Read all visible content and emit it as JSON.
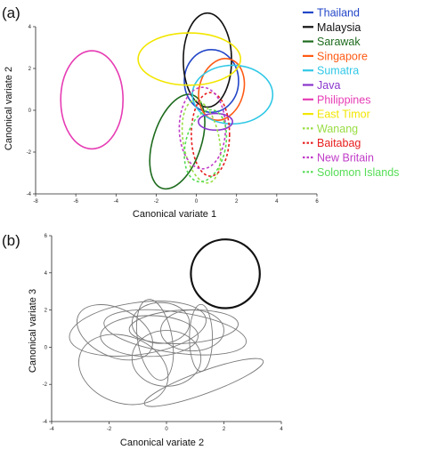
{
  "figure": {
    "panel_a_label": "(a)",
    "panel_b_label": "(b)"
  },
  "chart_data": [
    {
      "type": "scatter",
      "title": "",
      "xlabel": "Canonical variate 1",
      "ylabel": "Canonical variate 2",
      "xlim": [
        -8,
        6
      ],
      "ylim": [
        -4,
        4
      ],
      "xticks": [
        -8,
        -6,
        -4,
        -2,
        0,
        2,
        4,
        6
      ],
      "yticks": [
        -4,
        -2,
        0,
        2,
        4
      ],
      "grid": false,
      "legend_position": "right",
      "series": [
        {
          "name": "Thailand",
          "color": "#2346c8",
          "dash": false,
          "ellipse": {
            "cx": 0.75,
            "cy": 1.4,
            "rx": 1.35,
            "ry": 1.5,
            "angle": 0
          }
        },
        {
          "name": "Malaysia",
          "color": "#111111",
          "dash": false,
          "ellipse": {
            "cx": 0.55,
            "cy": 2.4,
            "rx": 1.2,
            "ry": 2.25,
            "angle": 0
          }
        },
        {
          "name": "Sarawak",
          "color": "#1e6b1e",
          "dash": false,
          "ellipse": {
            "cx": -0.95,
            "cy": -1.5,
            "rx": 1.2,
            "ry": 2.35,
            "angle": -18
          }
        },
        {
          "name": "Singapore",
          "color": "#ff5a14",
          "dash": false,
          "ellipse": {
            "cx": 1.25,
            "cy": 1.0,
            "rx": 1.1,
            "ry": 1.5,
            "angle": -15
          }
        },
        {
          "name": "Sumatra",
          "color": "#30c8e6",
          "dash": false,
          "ellipse": {
            "cx": 1.8,
            "cy": 0.75,
            "rx": 2.0,
            "ry": 1.4,
            "angle": 0
          }
        },
        {
          "name": "Java",
          "color": "#8a35cc",
          "dash": false,
          "ellipse": {
            "cx": 0.95,
            "cy": -0.55,
            "rx": 0.85,
            "ry": 0.4,
            "angle": 0
          }
        },
        {
          "name": "Philippines",
          "color": "#e63cb4",
          "dash": false,
          "ellipse": {
            "cx": -5.2,
            "cy": 0.5,
            "rx": 1.55,
            "ry": 2.35,
            "angle": 0
          }
        },
        {
          "name": "East Timor",
          "color": "#f2e600",
          "dash": false,
          "ellipse": {
            "cx": -0.35,
            "cy": 2.45,
            "rx": 2.55,
            "ry": 1.25,
            "angle": 0
          }
        },
        {
          "name": "Wanang",
          "color": "#99dd44",
          "dash": true,
          "ellipse": {
            "cx": 0.25,
            "cy": -1.5,
            "rx": 0.9,
            "ry": 2.0,
            "angle": 10
          }
        },
        {
          "name": "Baitabag",
          "color": "#e81e1e",
          "dash": true,
          "ellipse": {
            "cx": 0.7,
            "cy": -1.15,
            "rx": 0.95,
            "ry": 2.0,
            "angle": 0
          }
        },
        {
          "name": "New Britain",
          "color": "#c03cc8",
          "dash": true,
          "ellipse": {
            "cx": 0.3,
            "cy": -0.85,
            "rx": 1.15,
            "ry": 1.95,
            "angle": 0
          }
        },
        {
          "name": "Solomon Islands",
          "color": "#55dd55",
          "dash": true,
          "ellipse": {
            "cx": 0.45,
            "cy": -1.7,
            "rx": 1.0,
            "ry": 1.75,
            "angle": -12
          }
        }
      ]
    },
    {
      "type": "scatter",
      "title": "",
      "xlabel": "Canonical variate 2",
      "ylabel": "Canonical variate 3",
      "xlim": [
        -4,
        4
      ],
      "ylim": [
        -4,
        6
      ],
      "xticks": [
        -4,
        -2,
        0,
        2,
        4
      ],
      "yticks": [
        -4,
        -2,
        0,
        2,
        4,
        6
      ],
      "grid": false,
      "highlight_color": "#111111",
      "other_color": "#7a7a7a",
      "series": [
        {
          "highlight": true,
          "ellipse": {
            "cx": 2.05,
            "cy": 3.95,
            "rx": 1.2,
            "ry": 1.85,
            "angle": 0
          }
        },
        {
          "highlight": false,
          "ellipse": {
            "cx": -1.0,
            "cy": 1.0,
            "rx": 2.4,
            "ry": 1.4,
            "angle": 8
          }
        },
        {
          "highlight": false,
          "ellipse": {
            "cx": 0.3,
            "cy": 0.8,
            "rx": 2.5,
            "ry": 1.1,
            "angle": -8
          }
        },
        {
          "highlight": false,
          "ellipse": {
            "cx": -0.6,
            "cy": 0.6,
            "rx": 1.7,
            "ry": 1.1,
            "angle": 0
          }
        },
        {
          "highlight": false,
          "ellipse": {
            "cx": -1.8,
            "cy": 0.8,
            "rx": 1.4,
            "ry": 1.3,
            "angle": -25
          }
        },
        {
          "highlight": false,
          "ellipse": {
            "cx": -0.2,
            "cy": 1.3,
            "rx": 1.0,
            "ry": 1.1,
            "angle": 0
          }
        },
        {
          "highlight": false,
          "ellipse": {
            "cx": 0.9,
            "cy": 0.9,
            "rx": 1.1,
            "ry": 1.1,
            "angle": 0
          }
        },
        {
          "highlight": false,
          "ellipse": {
            "cx": -0.4,
            "cy": 0.4,
            "rx": 0.6,
            "ry": 2.2,
            "angle": 10
          }
        },
        {
          "highlight": false,
          "ellipse": {
            "cx": 1.2,
            "cy": 0.5,
            "rx": 0.4,
            "ry": 1.8,
            "angle": 0
          }
        },
        {
          "highlight": false,
          "ellipse": {
            "cx": 1.3,
            "cy": -1.9,
            "rx": 2.2,
            "ry": 0.6,
            "angle": 20
          }
        },
        {
          "highlight": false,
          "ellipse": {
            "cx": 0.0,
            "cy": -0.6,
            "rx": 1.2,
            "ry": 1.5,
            "angle": 0
          }
        },
        {
          "highlight": false,
          "ellipse": {
            "cx": -1.5,
            "cy": -1.2,
            "rx": 1.6,
            "ry": 1.8,
            "angle": -20
          }
        },
        {
          "highlight": false,
          "ellipse": {
            "cx": 0.6,
            "cy": 1.1,
            "rx": 1.9,
            "ry": 0.9,
            "angle": 3
          }
        }
      ]
    }
  ]
}
